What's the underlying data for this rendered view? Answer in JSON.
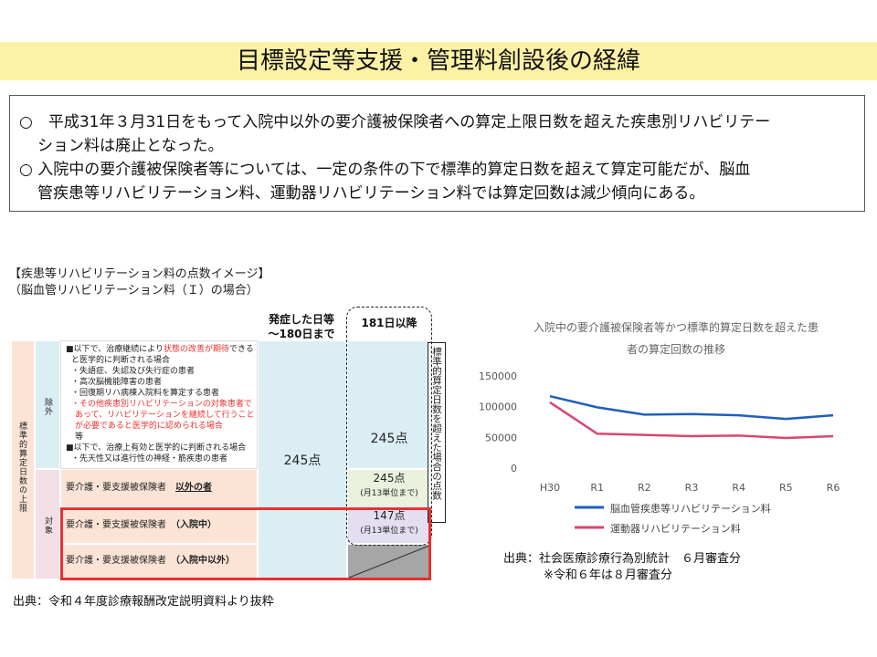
{
  "title": "目標設定等支援・管理料創設後の経緯",
  "summary": {
    "line1": "○　平成31年３月31日をもって入院中以外の要介護被保険者への算定上限日数を超えた疾患別リハビリテー",
    "line2": "ション料は廃止となった。",
    "line3": "○ 入院中の要介護被保険者等については、一定の条件の下で標準的算定日数を超えて算定可能だが、脳血",
    "line4": "管疾患等リハビリテーション料、運動器リハビリテーション料では算定回数は減少傾向にある。"
  },
  "table_section": {
    "label1": "【疾患等リハビリテーション料の点数イメージ】",
    "label2": "（脳血管リハビリテーション料（Ｉ）の場合）",
    "col1_head_line1": "発症した日等",
    "col1_head_line2": "～180日まで",
    "col2_head": "181日以降",
    "side_col": "標準的算定日数を超えた場合の点数",
    "row_group": "標準的算定日数の上限",
    "exclusion": "除外",
    "target": "対象",
    "excl_items": {
      "l1a": "■以下で、治療継続により",
      "l1b": "状態の改善が期待",
      "l1c": "できる",
      "l2": "と医学的に判断される場合",
      "l3": "・失語症、失認及び失行症の患者",
      "l4": "・高次脳機能障害の患者",
      "l5": "・回復期リハ病棟入院料を算定する患者",
      "l6": "・その他疾患別リハビリテーションの対象患者で",
      "l7": "あって、リハビリテーションを継続して行うこと",
      "l8": "が必要であると医学的に認められる場合",
      "l9": "等",
      "l10": "■以下で、治療上有効と医学的に判断される場合",
      "l11": "・先天性又は進行性の神経・筋疾患の患者"
    },
    "row_other_a": "要介護・要支援被保険者",
    "row_other_b": "以外の者",
    "row_in_a": "要介護・要支援被保険者",
    "row_in_b": "（入院中）",
    "row_out_a": "要介護・要支援被保険者",
    "row_out_b": "（入院中以外）",
    "pts_main": "245点",
    "pts_excl_181": "245点",
    "pts_other_181": "245点",
    "pts_other_181_note": "(月13単位まで)",
    "pts_in_181": "147点",
    "pts_in_181_note": "(月13単位まで)"
  },
  "chart_data": {
    "type": "line",
    "title_line1": "入院中の要介護被保険者等かつ標準的算定日数を超えた患",
    "title_line2": "者の算定回数の推移",
    "categories": [
      "H30",
      "R1",
      "R2",
      "R3",
      "R4",
      "R5",
      "R6"
    ],
    "ylim": [
      0,
      150000
    ],
    "yticks": [
      "150000",
      "100000",
      "50000",
      "0"
    ],
    "series": [
      {
        "name": "脳血管疾患等リハビリテーション料",
        "color": "#1f5fbf",
        "values": [
          117000,
          99000,
          87000,
          88000,
          86000,
          80000,
          86000
        ]
      },
      {
        "name": "運動器リハビリテーション料",
        "color": "#d9456e",
        "values": [
          107000,
          56000,
          54000,
          52000,
          53000,
          49000,
          52000
        ]
      }
    ],
    "legend_position": "bottom",
    "grid": false
  },
  "chart_source": {
    "line1": "出典：社会医療診療行為別統計　６月審査分",
    "line2": "※令和６年は８月審査分"
  },
  "footer_source": "出典：令和４年度診療報酬改定説明資料より抜粋",
  "colors": {
    "title_bg": "#fdf1a6",
    "peach": "#fbe4d5",
    "lightblue": "#dbeef4",
    "lightpink": "#f4dfe6",
    "lightgreen": "#eaf1dd",
    "lavender": "#e4dff0",
    "gray": "#a6a6a6",
    "highlight_red": "#e8312e"
  }
}
